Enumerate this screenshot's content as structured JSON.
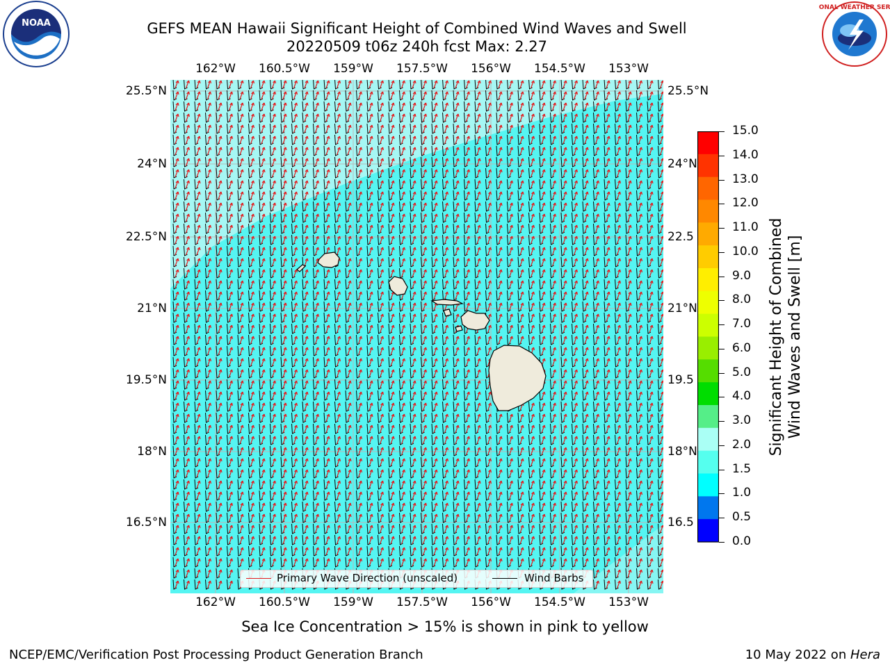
{
  "title_line1": "GEFS MEAN Hawaii Significant Height of Combined Wind Waves and Swell",
  "title_line2": "20220509 t06z 240h fcst   Max: 2.27",
  "lon_ticks": [
    "162°W",
    "160.5°W",
    "159°W",
    "157.5°W",
    "156°W",
    "154.5°W",
    "153°W"
  ],
  "lat_ticks_left": [
    "25.5°N",
    "24°N",
    "22.5°N",
    "21°N",
    "19.5°N",
    "18°N",
    "16.5°N"
  ],
  "lat_ticks_right": [
    "25.5°N",
    "24°N",
    "22.5",
    "21°N",
    "19.5",
    "18°N",
    "16.5"
  ],
  "legend": {
    "wave_label": "Primary Wave Direction (unscaled)",
    "barb_label": "Wind Barbs",
    "wave_color": "#e41a1c",
    "barb_color": "#000000"
  },
  "colorbar": {
    "label_line1": "Significant Height of Combined",
    "label_line2": "Wind Waves and Swell [m]",
    "ticks": [
      "15.0",
      "14.0",
      "13.0",
      "12.0",
      "11.0",
      "10.0",
      "9.0",
      "8.0",
      "7.0",
      "6.0",
      "5.0",
      "4.0",
      "3.0",
      "2.0",
      "1.5",
      "1.0",
      "0.5",
      "0.0"
    ],
    "colors": [
      "#ff0000",
      "#ff3300",
      "#ff6600",
      "#ff8800",
      "#ffaa00",
      "#ffcc00",
      "#ffee00",
      "#eeff00",
      "#ccff00",
      "#99ee00",
      "#55dd00",
      "#00dd00",
      "#55ee88",
      "#aafff5",
      "#55ffee",
      "#00ffff",
      "#0077ee",
      "#0000ff"
    ]
  },
  "map_colors": {
    "ocean_main": "#55f5f2",
    "ocean_light": "#a6f7f4",
    "land": "#efebdc"
  },
  "footer_note": "Sea Ice Concentration > 15% is shown in pink to yellow",
  "footer_left": "NCEP/EMC/Verification Post Processing Product Generation Branch",
  "footer_right_date": "10 May 2022 on ",
  "footer_right_host": "Hera",
  "logo_left_text": "NOAA",
  "logo_right_text": "NATIONAL WEATHER SERVICE"
}
